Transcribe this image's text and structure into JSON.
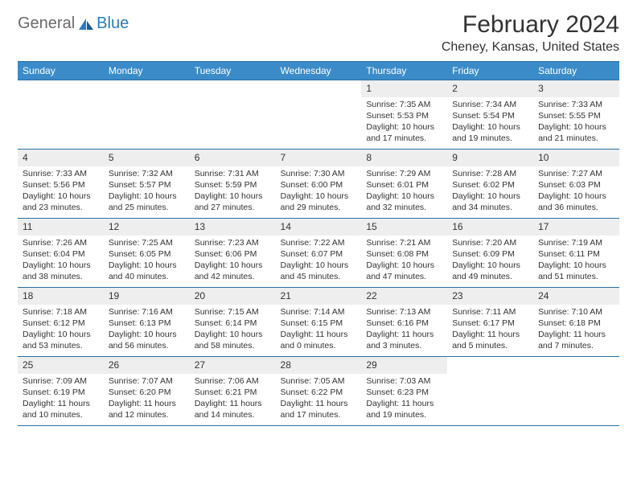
{
  "logo": {
    "text1": "General",
    "text2": "Blue"
  },
  "title": "February 2024",
  "location": "Cheney, Kansas, United States",
  "colors": {
    "header_bg": "#3b8bc9",
    "header_border": "#2a6fa3",
    "date_bg": "#eeeeee",
    "text": "#333333",
    "logo_gray": "#6a6a6a",
    "logo_blue": "#2a7bbf",
    "page_bg": "#ffffff"
  },
  "typography": {
    "title_fontsize": 30,
    "location_fontsize": 16,
    "dayheader_fontsize": 12,
    "date_fontsize": 12,
    "body_fontsize": 10.5
  },
  "day_headers": [
    "Sunday",
    "Monday",
    "Tuesday",
    "Wednesday",
    "Thursday",
    "Friday",
    "Saturday"
  ],
  "weeks": [
    [
      {
        "date": "",
        "sunrise": "",
        "sunset": "",
        "daylight": ""
      },
      {
        "date": "",
        "sunrise": "",
        "sunset": "",
        "daylight": ""
      },
      {
        "date": "",
        "sunrise": "",
        "sunset": "",
        "daylight": ""
      },
      {
        "date": "",
        "sunrise": "",
        "sunset": "",
        "daylight": ""
      },
      {
        "date": "1",
        "sunrise": "Sunrise: 7:35 AM",
        "sunset": "Sunset: 5:53 PM",
        "daylight": "Daylight: 10 hours and 17 minutes."
      },
      {
        "date": "2",
        "sunrise": "Sunrise: 7:34 AM",
        "sunset": "Sunset: 5:54 PM",
        "daylight": "Daylight: 10 hours and 19 minutes."
      },
      {
        "date": "3",
        "sunrise": "Sunrise: 7:33 AM",
        "sunset": "Sunset: 5:55 PM",
        "daylight": "Daylight: 10 hours and 21 minutes."
      }
    ],
    [
      {
        "date": "4",
        "sunrise": "Sunrise: 7:33 AM",
        "sunset": "Sunset: 5:56 PM",
        "daylight": "Daylight: 10 hours and 23 minutes."
      },
      {
        "date": "5",
        "sunrise": "Sunrise: 7:32 AM",
        "sunset": "Sunset: 5:57 PM",
        "daylight": "Daylight: 10 hours and 25 minutes."
      },
      {
        "date": "6",
        "sunrise": "Sunrise: 7:31 AM",
        "sunset": "Sunset: 5:59 PM",
        "daylight": "Daylight: 10 hours and 27 minutes."
      },
      {
        "date": "7",
        "sunrise": "Sunrise: 7:30 AM",
        "sunset": "Sunset: 6:00 PM",
        "daylight": "Daylight: 10 hours and 29 minutes."
      },
      {
        "date": "8",
        "sunrise": "Sunrise: 7:29 AM",
        "sunset": "Sunset: 6:01 PM",
        "daylight": "Daylight: 10 hours and 32 minutes."
      },
      {
        "date": "9",
        "sunrise": "Sunrise: 7:28 AM",
        "sunset": "Sunset: 6:02 PM",
        "daylight": "Daylight: 10 hours and 34 minutes."
      },
      {
        "date": "10",
        "sunrise": "Sunrise: 7:27 AM",
        "sunset": "Sunset: 6:03 PM",
        "daylight": "Daylight: 10 hours and 36 minutes."
      }
    ],
    [
      {
        "date": "11",
        "sunrise": "Sunrise: 7:26 AM",
        "sunset": "Sunset: 6:04 PM",
        "daylight": "Daylight: 10 hours and 38 minutes."
      },
      {
        "date": "12",
        "sunrise": "Sunrise: 7:25 AM",
        "sunset": "Sunset: 6:05 PM",
        "daylight": "Daylight: 10 hours and 40 minutes."
      },
      {
        "date": "13",
        "sunrise": "Sunrise: 7:23 AM",
        "sunset": "Sunset: 6:06 PM",
        "daylight": "Daylight: 10 hours and 42 minutes."
      },
      {
        "date": "14",
        "sunrise": "Sunrise: 7:22 AM",
        "sunset": "Sunset: 6:07 PM",
        "daylight": "Daylight: 10 hours and 45 minutes."
      },
      {
        "date": "15",
        "sunrise": "Sunrise: 7:21 AM",
        "sunset": "Sunset: 6:08 PM",
        "daylight": "Daylight: 10 hours and 47 minutes."
      },
      {
        "date": "16",
        "sunrise": "Sunrise: 7:20 AM",
        "sunset": "Sunset: 6:09 PM",
        "daylight": "Daylight: 10 hours and 49 minutes."
      },
      {
        "date": "17",
        "sunrise": "Sunrise: 7:19 AM",
        "sunset": "Sunset: 6:11 PM",
        "daylight": "Daylight: 10 hours and 51 minutes."
      }
    ],
    [
      {
        "date": "18",
        "sunrise": "Sunrise: 7:18 AM",
        "sunset": "Sunset: 6:12 PM",
        "daylight": "Daylight: 10 hours and 53 minutes."
      },
      {
        "date": "19",
        "sunrise": "Sunrise: 7:16 AM",
        "sunset": "Sunset: 6:13 PM",
        "daylight": "Daylight: 10 hours and 56 minutes."
      },
      {
        "date": "20",
        "sunrise": "Sunrise: 7:15 AM",
        "sunset": "Sunset: 6:14 PM",
        "daylight": "Daylight: 10 hours and 58 minutes."
      },
      {
        "date": "21",
        "sunrise": "Sunrise: 7:14 AM",
        "sunset": "Sunset: 6:15 PM",
        "daylight": "Daylight: 11 hours and 0 minutes."
      },
      {
        "date": "22",
        "sunrise": "Sunrise: 7:13 AM",
        "sunset": "Sunset: 6:16 PM",
        "daylight": "Daylight: 11 hours and 3 minutes."
      },
      {
        "date": "23",
        "sunrise": "Sunrise: 7:11 AM",
        "sunset": "Sunset: 6:17 PM",
        "daylight": "Daylight: 11 hours and 5 minutes."
      },
      {
        "date": "24",
        "sunrise": "Sunrise: 7:10 AM",
        "sunset": "Sunset: 6:18 PM",
        "daylight": "Daylight: 11 hours and 7 minutes."
      }
    ],
    [
      {
        "date": "25",
        "sunrise": "Sunrise: 7:09 AM",
        "sunset": "Sunset: 6:19 PM",
        "daylight": "Daylight: 11 hours and 10 minutes."
      },
      {
        "date": "26",
        "sunrise": "Sunrise: 7:07 AM",
        "sunset": "Sunset: 6:20 PM",
        "daylight": "Daylight: 11 hours and 12 minutes."
      },
      {
        "date": "27",
        "sunrise": "Sunrise: 7:06 AM",
        "sunset": "Sunset: 6:21 PM",
        "daylight": "Daylight: 11 hours and 14 minutes."
      },
      {
        "date": "28",
        "sunrise": "Sunrise: 7:05 AM",
        "sunset": "Sunset: 6:22 PM",
        "daylight": "Daylight: 11 hours and 17 minutes."
      },
      {
        "date": "29",
        "sunrise": "Sunrise: 7:03 AM",
        "sunset": "Sunset: 6:23 PM",
        "daylight": "Daylight: 11 hours and 19 minutes."
      },
      {
        "date": "",
        "sunrise": "",
        "sunset": "",
        "daylight": ""
      },
      {
        "date": "",
        "sunrise": "",
        "sunset": "",
        "daylight": ""
      }
    ]
  ]
}
